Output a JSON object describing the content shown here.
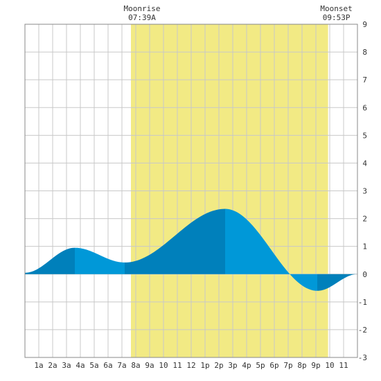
{
  "chart_data": {
    "type": "area",
    "xlabel": "",
    "ylabel": "",
    "x_ticks": [
      "1a",
      "2a",
      "3a",
      "4a",
      "5a",
      "6a",
      "7a",
      "8a",
      "9a",
      "10",
      "11",
      "12",
      "1p",
      "2p",
      "3p",
      "4p",
      "5p",
      "6p",
      "7p",
      "8p",
      "9p",
      "10",
      "11"
    ],
    "x_range_hours": [
      0,
      24
    ],
    "ylim": [
      -3,
      9
    ],
    "y_ticks": [
      "-3",
      "-2",
      "-1",
      "0",
      "1",
      "2",
      "3",
      "4",
      "5",
      "6",
      "7",
      "8",
      "9"
    ],
    "grid": true,
    "moon_events": [
      {
        "label": "Moonrise",
        "time": "07:39A",
        "hour": 7.65
      },
      {
        "label": "Moonset",
        "time": "09:53P",
        "hour": 21.88
      }
    ],
    "tide_extremes": [
      {
        "hour": 0.0,
        "value": 0.05
      },
      {
        "hour": 3.6,
        "value": 0.95
      },
      {
        "hour": 7.2,
        "value": 0.42
      },
      {
        "hour": 14.45,
        "value": 2.35
      },
      {
        "hour": 21.1,
        "value": -0.6
      },
      {
        "hour": 24.0,
        "value": 0.0
      }
    ],
    "colors": {
      "moon_band": "#f2ea84",
      "tide_light": "#0098d8",
      "tide_dark": "#0080bb",
      "grid": "#c8c8c8",
      "frame": "#888888"
    }
  }
}
